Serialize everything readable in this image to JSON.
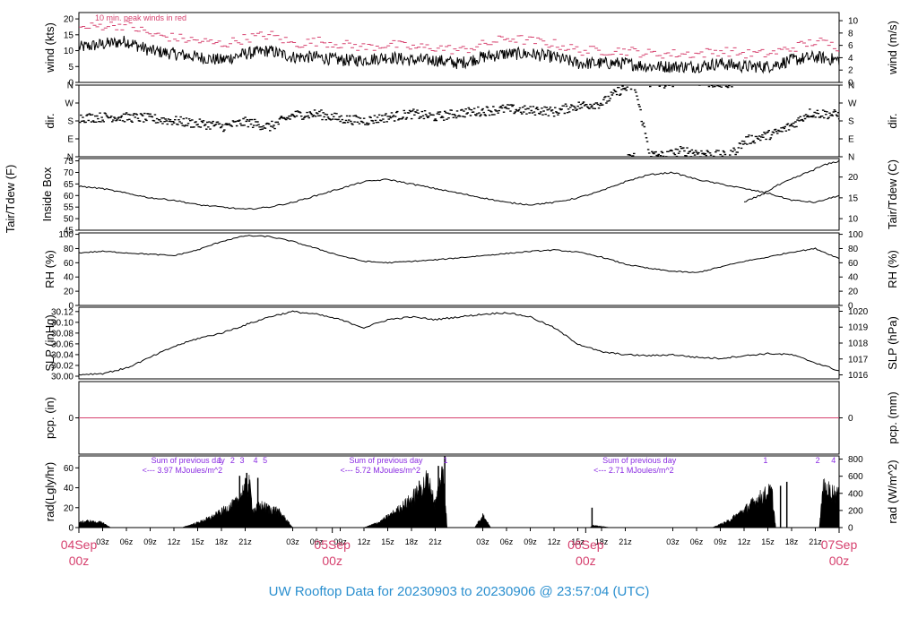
{
  "title": "UW Rooftop Data for 20230903  to  20230906 @ 23:57:04  (UTC)",
  "colors": {
    "frame": "#000000",
    "title": "#2a8fcf",
    "peak": "#d6406e",
    "zero_line": "#d6406e",
    "date": "#d6406e",
    "sum": "#8a2be2"
  },
  "chart_data": {
    "type": "line",
    "x_axis": {
      "range_hours": [
        0,
        96
      ],
      "hour_ticks": [
        {
          "h": 3,
          "label": "03z"
        },
        {
          "h": 6,
          "label": "06z"
        },
        {
          "h": 9,
          "label": "09z"
        },
        {
          "h": 12,
          "label": "12z"
        },
        {
          "h": 15,
          "label": "15z"
        },
        {
          "h": 18,
          "label": "18z"
        },
        {
          "h": 21,
          "label": "21z"
        },
        {
          "h": 27,
          "label": "03z"
        },
        {
          "h": 30,
          "label": "06z"
        },
        {
          "h": 33,
          "label": "09z"
        },
        {
          "h": 36,
          "label": "12z"
        },
        {
          "h": 39,
          "label": "15z"
        },
        {
          "h": 42,
          "label": "18z"
        },
        {
          "h": 45,
          "label": "21z"
        },
        {
          "h": 51,
          "label": "03z"
        },
        {
          "h": 54,
          "label": "06z"
        },
        {
          "h": 57,
          "label": "09z"
        },
        {
          "h": 60,
          "label": "12z"
        },
        {
          "h": 63,
          "label": "15z"
        },
        {
          "h": 66,
          "label": "18z"
        },
        {
          "h": 69,
          "label": "21z"
        },
        {
          "h": 75,
          "label": "03z"
        },
        {
          "h": 78,
          "label": "06z"
        },
        {
          "h": 81,
          "label": "09z"
        },
        {
          "h": 84,
          "label": "12z"
        },
        {
          "h": 87,
          "label": "15z"
        },
        {
          "h": 90,
          "label": "18z"
        },
        {
          "h": 93,
          "label": "21z"
        }
      ],
      "date_ticks": [
        {
          "h": 0,
          "date": "04Sep",
          "time": "00z"
        },
        {
          "h": 32,
          "date": "05Sep",
          "time": "00z"
        },
        {
          "h": 64,
          "date": "06Sep",
          "time": "00z"
        },
        {
          "h": 96,
          "date": "07Sep",
          "time": "00z"
        }
      ]
    },
    "panels": [
      {
        "id": "wind",
        "ylabel": "wind (kts)",
        "ylabel2": "wind (m/s)",
        "ylim": [
          0,
          22
        ],
        "ticks": [
          0,
          5,
          10,
          15,
          20
        ],
        "ticks2": [
          0,
          2,
          4,
          6,
          8,
          10
        ],
        "ticks2_factor": 1.94384,
        "annotation": "10 min. peak winds in red",
        "series": [
          {
            "kind": "noisy",
            "color": "#000000",
            "noise": 2.0,
            "x": [
              0,
              3,
              6,
              9,
              12,
              15,
              18,
              21,
              24,
              27,
              30,
              33,
              36,
              39,
              42,
              45,
              48,
              51,
              54,
              57,
              60,
              63,
              66,
              69,
              72,
              75,
              78,
              81,
              84,
              87,
              90,
              93,
              96
            ],
            "y": [
              11,
              12,
              13,
              10,
              9,
              8,
              7,
              9,
              10,
              8,
              8,
              7,
              7,
              8,
              7,
              7,
              6,
              8,
              9,
              9,
              8,
              6,
              6,
              6,
              5,
              5,
              5,
              6,
              5,
              5,
              7,
              8,
              7
            ]
          },
          {
            "kind": "dashes",
            "color": "#d6406e",
            "noise": 1.5,
            "x": [
              0,
              3,
              6,
              9,
              12,
              15,
              18,
              21,
              24,
              27,
              30,
              33,
              36,
              39,
              42,
              45,
              48,
              51,
              54,
              57,
              60,
              63,
              66,
              69,
              72,
              75,
              78,
              81,
              84,
              87,
              90,
              93,
              96
            ],
            "y": [
              17,
              18,
              18,
              15,
              14,
              13,
              12,
              14,
              15,
              12,
              13,
              12,
              11,
              12,
              11,
              11,
              10,
              12,
              14,
              13,
              12,
              10,
              10,
              10,
              9,
              9,
              9,
              10,
              9,
              9,
              11,
              13,
              11
            ]
          }
        ]
      },
      {
        "id": "dir",
        "ylabel": "dir.",
        "ylabel2": "dir.",
        "ylim": [
          0,
          360
        ],
        "ticks": [
          0,
          90,
          180,
          270,
          360
        ],
        "tick_labels": [
          "N",
          "E",
          "S",
          "W",
          "N"
        ],
        "series": [
          {
            "kind": "dashes",
            "color": "#000000",
            "noise": 12,
            "x": [
              0,
              4,
              8,
              12,
              15,
              17,
              18,
              21,
              24,
              27,
              30,
              33,
              36,
              39,
              42,
              45,
              48,
              51,
              54,
              57,
              58,
              60,
              62,
              64,
              66,
              68,
              70,
              72,
              74,
              76,
              78,
              80,
              82,
              84,
              86,
              88,
              90,
              92,
              94,
              96
            ],
            "y": [
              195,
              200,
              195,
              180,
              165,
              160,
              150,
              175,
              150,
              210,
              215,
              190,
              180,
              200,
              215,
              200,
              220,
              230,
              240,
              230,
              235,
              225,
              250,
              260,
              270,
              330,
              360,
              10,
              5,
              30,
              20,
              10,
              2,
              80,
              100,
              120,
              160,
              220,
              215,
              210
            ]
          }
        ]
      },
      {
        "id": "temp",
        "ylabel": "Inside Box",
        "ylabel_outer": "Tair/Tdew (F)",
        "ylabel2": "Tair/Tdew (C)",
        "ylim": [
          45,
          76
        ],
        "ticks": [
          45,
          50,
          55,
          60,
          65,
          70,
          75
        ],
        "ticks2": [
          10,
          15,
          20
        ],
        "ticks2_celsius": true,
        "series": [
          {
            "kind": "line",
            "color": "#000000",
            "noise": 0.3,
            "x": [
              0,
              3,
              6,
              9,
              12,
              15,
              18,
              21,
              24,
              27,
              30,
              33,
              36,
              39,
              42,
              45,
              48,
              51,
              54,
              57,
              60,
              63,
              66,
              69,
              72,
              75,
              78,
              81,
              84,
              87,
              90,
              93,
              96
            ],
            "y": [
              64,
              63,
              61,
              59,
              58,
              56,
              55,
              54,
              55,
              57,
              60,
              63,
              66,
              67,
              65,
              63,
              61,
              59,
              57,
              56,
              57,
              59,
              62,
              66,
              69,
              70,
              67,
              65,
              63,
              61,
              58,
              57,
              60
            ]
          },
          {
            "kind": "line",
            "color": "#000000",
            "noise": 0.4,
            "x": [
              84,
              86,
              88,
              90,
              92,
              94,
              96
            ],
            "y": [
              57,
              60,
              64,
              67,
              70,
              73,
              75
            ]
          }
        ]
      },
      {
        "id": "rh",
        "ylabel": "RH (%)",
        "ylabel2": "RH (%)",
        "ylim": [
          0,
          102
        ],
        "ticks": [
          0,
          20,
          40,
          60,
          80,
          100
        ],
        "ticks2": [
          0,
          20,
          40,
          60,
          80,
          100
        ],
        "series": [
          {
            "kind": "line",
            "color": "#000000",
            "noise": 0.8,
            "x": [
              0,
              3,
              6,
              9,
              12,
              15,
              18,
              21,
              24,
              27,
              30,
              33,
              36,
              39,
              42,
              45,
              48,
              51,
              54,
              57,
              60,
              63,
              66,
              69,
              72,
              75,
              78,
              81,
              84,
              87,
              90,
              93,
              96
            ],
            "y": [
              74,
              76,
              74,
              72,
              70,
              78,
              90,
              98,
              97,
              90,
              80,
              70,
              62,
              60,
              62,
              64,
              67,
              70,
              73,
              76,
              78,
              75,
              68,
              58,
              52,
              48,
              46,
              54,
              62,
              68,
              75,
              80,
              66
            ]
          }
        ]
      },
      {
        "id": "slp",
        "ylabel": "SLP (inHg)",
        "ylabel2": "SLP (hPa)",
        "ylim": [
          29.995,
          30.128
        ],
        "ticks": [
          30.0,
          30.02,
          30.04,
          30.06,
          30.08,
          30.1,
          30.12
        ],
        "tick_labels": [
          "30.00",
          "30.02",
          "30.04",
          "30.06",
          "30.08",
          "30.10",
          "30.12"
        ],
        "ticks2": [
          1016,
          1017,
          1018,
          1019,
          1020
        ],
        "ticks2_hpa": true,
        "series": [
          {
            "kind": "line",
            "color": "#000000",
            "noise": 0.0015,
            "x": [
              0,
              3,
              6,
              9,
              12,
              15,
              18,
              21,
              24,
              27,
              30,
              33,
              36,
              39,
              42,
              45,
              48,
              51,
              54,
              57,
              60,
              63,
              66,
              69,
              72,
              75,
              78,
              81,
              84,
              87,
              90,
              93,
              96
            ],
            "y": [
              30.003,
              30.005,
              30.015,
              30.035,
              30.055,
              30.07,
              30.08,
              30.095,
              30.11,
              30.12,
              30.115,
              30.105,
              30.09,
              30.105,
              30.11,
              30.105,
              30.11,
              30.115,
              30.118,
              30.11,
              30.09,
              30.06,
              30.045,
              30.04,
              30.038,
              30.04,
              30.035,
              30.033,
              30.038,
              30.042,
              30.04,
              30.025,
              30.01
            ]
          }
        ]
      },
      {
        "id": "pcp",
        "ylabel": "pcp. (in)",
        "ylabel2": "pcp. (mm)",
        "ylim": [
          -1,
          1
        ],
        "ticks": [
          0
        ],
        "ticks2": [
          0
        ],
        "zero_line": true,
        "series": []
      },
      {
        "id": "rad",
        "ylabel": "rad(Lgly/hr)",
        "ylabel2": "rad (W/m^2)",
        "ylim": [
          0,
          72
        ],
        "ticks": [
          0,
          20,
          40,
          60
        ],
        "ticks2": [
          0,
          200,
          400,
          600,
          800
        ],
        "ticks2_factor": 0.086,
        "series": [
          {
            "kind": "area",
            "color": "#000000",
            "x": [
              0,
              1,
              3,
              4,
              13,
              15,
              17,
              19,
              20,
              20.8,
              21.5,
              22,
              23,
              24,
              25,
              26,
              27,
              36,
              38,
              40,
              42,
              43.5,
              44,
              45,
              46,
              46.5,
              48,
              49,
              50,
              51,
              52,
              57,
              59,
              61,
              63,
              64,
              64.5,
              65,
              67,
              67.5,
              68,
              80,
              82,
              84,
              86,
              87,
              87.5,
              88,
              90,
              91,
              92,
              93.5,
              94,
              95,
              96
            ],
            "y": [
              6,
              8,
              6,
              0,
              0,
              6,
              14,
              26,
              32,
              48,
              55,
              22,
              28,
              24,
              22,
              12,
              0,
              0,
              7,
              20,
              36,
              54,
              62,
              30,
              75,
              0,
              0,
              0,
              0,
              16,
              0,
              0,
              0,
              0,
              0,
              0,
              0,
              3,
              0,
              0,
              0,
              0,
              8,
              22,
              38,
              44,
              46,
              0,
              0,
              0,
              0,
              0,
              50,
              46,
              40
            ]
          }
        ],
        "spikes": [
          {
            "x": 20.3,
            "y": 52
          },
          {
            "x": 21.2,
            "y": 55
          },
          {
            "x": 22.6,
            "y": 50
          },
          {
            "x": 45.4,
            "y": 62
          },
          {
            "x": 46.2,
            "y": 74
          },
          {
            "x": 64.8,
            "y": 20
          },
          {
            "x": 88.6,
            "y": 42
          },
          {
            "x": 89.4,
            "y": 46
          }
        ],
        "hour_marks": [
          {
            "h": 17.8,
            "label": "1"
          },
          {
            "h": 19.4,
            "label": "2"
          },
          {
            "h": 20.6,
            "label": "3"
          },
          {
            "h": 22.3,
            "label": "4"
          },
          {
            "h": 23.5,
            "label": "5"
          },
          {
            "h": 46.3,
            "label": "1"
          },
          {
            "h": 86.7,
            "label": "1"
          },
          {
            "h": 93.3,
            "label": "2"
          },
          {
            "h": 95.3,
            "label": "4"
          }
        ],
        "daily_sums": [
          {
            "h": 8,
            "line1": "Sum of previous day",
            "line2": "<--- 3.97 MJoules/m^2"
          },
          {
            "h": 33,
            "line1": "Sum of previous day",
            "line2": "<--- 5.72 MJoules/m^2"
          },
          {
            "h": 65,
            "line1": "Sum of previous day",
            "line2": "<--- 2.71 MJoules/m^2"
          }
        ]
      }
    ]
  }
}
